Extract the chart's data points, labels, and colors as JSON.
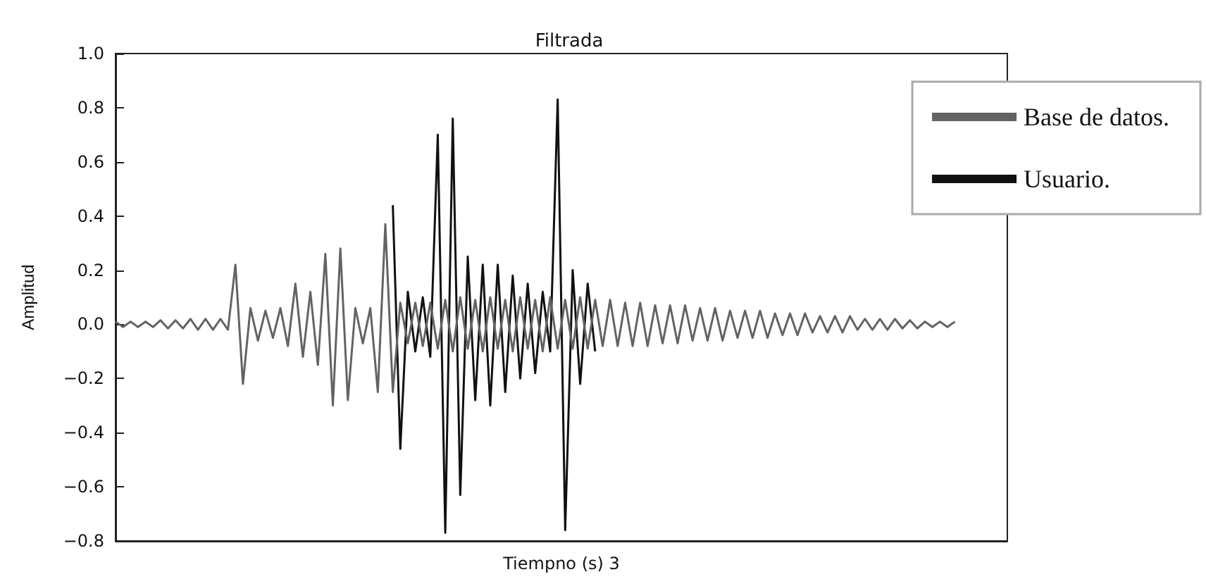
{
  "chart_data": {
    "type": "line",
    "title": "Filtrada",
    "xlabel": "Tiempno (s) 3",
    "ylabel": "Amplitud",
    "categories": [
      null,
      null,
      null,
      null,
      null,
      null,
      null,
      null,
      null,
      null,
      null,
      null,
      null,
      null,
      null,
      null,
      null,
      null,
      null,
      null,
      null,
      null,
      null,
      null,
      null,
      null,
      null,
      null,
      null,
      null,
      null,
      null,
      null,
      null,
      null,
      null,
      null,
      null,
      null,
      null,
      null,
      null,
      null,
      null,
      null,
      null,
      null,
      null,
      null,
      null,
      null,
      null,
      null,
      null,
      null,
      null,
      null,
      null,
      null,
      null,
      null,
      null,
      null,
      null,
      null,
      null,
      null,
      null,
      null,
      null,
      null,
      null,
      null,
      null,
      null,
      null,
      null,
      null,
      null,
      null,
      null,
      null,
      null,
      null,
      null,
      null,
      null,
      null,
      null,
      null,
      null,
      null,
      null,
      null,
      null,
      null,
      null,
      null,
      null,
      null,
      null,
      null,
      null,
      null,
      null,
      null,
      null,
      null,
      null,
      null,
      null,
      null,
      null,
      null,
      null,
      null,
      null,
      null,
      null,
      null
    ],
    "series": [
      {
        "name": "Base de datos.",
        "color": "#636363",
        "values": [
          0.01,
          -0.01,
          0.01,
          -0.01,
          0.01,
          -0.01,
          0.015,
          -0.015,
          0.015,
          -0.015,
          0.02,
          -0.02,
          0.02,
          -0.02,
          0.02,
          -0.02,
          0.22,
          -0.22,
          0.06,
          -0.06,
          0.05,
          -0.05,
          0.06,
          -0.08,
          0.15,
          -0.12,
          0.12,
          -0.15,
          0.26,
          -0.3,
          0.28,
          -0.28,
          0.06,
          -0.07,
          0.06,
          -0.25,
          0.37,
          -0.25,
          0.08,
          -0.07,
          0.08,
          -0.08,
          0.08,
          -0.09,
          0.09,
          -0.1,
          0.1,
          -0.09,
          0.09,
          -0.1,
          0.1,
          -0.09,
          0.09,
          -0.1,
          0.1,
          -0.09,
          0.09,
          -0.1,
          0.1,
          -0.09,
          0.09,
          -0.09,
          0.1,
          -0.09,
          0.09,
          -0.08,
          0.09,
          -0.08,
          0.08,
          -0.08,
          0.08,
          -0.08,
          0.07,
          -0.07,
          0.07,
          -0.07,
          0.07,
          -0.06,
          0.06,
          -0.06,
          0.06,
          -0.06,
          0.05,
          -0.05,
          0.05,
          -0.05,
          0.05,
          -0.05,
          0.04,
          -0.04,
          0.04,
          -0.04,
          0.04,
          -0.03,
          0.03,
          -0.03,
          0.03,
          -0.03,
          0.03,
          -0.02,
          0.02,
          -0.02,
          0.02,
          -0.02,
          0.02,
          -0.015,
          0.015,
          -0.015,
          0.01,
          -0.01,
          0.01,
          -0.01,
          0.01,
          null,
          null,
          null,
          null,
          null,
          null,
          null
        ]
      },
      {
        "name": "Usuario.",
        "color": "#111111",
        "values": [
          null,
          null,
          null,
          null,
          null,
          null,
          null,
          null,
          null,
          null,
          null,
          null,
          null,
          null,
          null,
          null,
          null,
          null,
          null,
          null,
          null,
          null,
          null,
          null,
          null,
          null,
          null,
          null,
          null,
          null,
          null,
          null,
          null,
          null,
          null,
          null,
          null,
          0.44,
          -0.46,
          0.12,
          -0.1,
          0.1,
          -0.12,
          0.7,
          -0.77,
          0.76,
          -0.63,
          0.25,
          -0.28,
          0.22,
          -0.3,
          0.22,
          -0.25,
          0.18,
          -0.2,
          0.15,
          -0.18,
          0.12,
          -0.1,
          0.83,
          -0.76,
          0.2,
          -0.22,
          0.15,
          -0.1,
          null,
          null,
          null,
          null,
          null,
          null,
          null,
          null,
          null,
          null,
          null,
          null,
          null,
          null,
          null,
          null,
          null,
          null,
          null,
          null,
          null,
          null,
          null,
          null,
          null,
          null,
          null,
          null,
          null,
          null,
          null,
          null,
          null,
          null,
          null,
          null,
          null,
          null,
          null,
          null,
          null,
          null,
          null,
          null,
          null,
          null,
          null,
          null,
          null,
          null,
          null,
          null,
          null,
          null,
          null
        ]
      }
    ],
    "ylim": [
      -0.8,
      1.0
    ],
    "yticks": [
      {
        "value": -0.8,
        "label": "−0.8"
      },
      {
        "value": -0.6,
        "label": "−0.6"
      },
      {
        "value": -0.4,
        "label": "−0.4"
      },
      {
        "value": -0.2,
        "label": "−0.2"
      },
      {
        "value": 0,
        "label": "0.0"
      },
      {
        "value": 0.2,
        "label": "0.2"
      },
      {
        "value": 0.4,
        "label": "0.4"
      },
      {
        "value": 0.6,
        "label": "0.6"
      },
      {
        "value": 0.8,
        "label": "0.8"
      },
      {
        "value": 1.0,
        "label": "1.0"
      }
    ],
    "tick_labels": "y",
    "legend": "top right",
    "line_style": "solid",
    "grid": false
  }
}
